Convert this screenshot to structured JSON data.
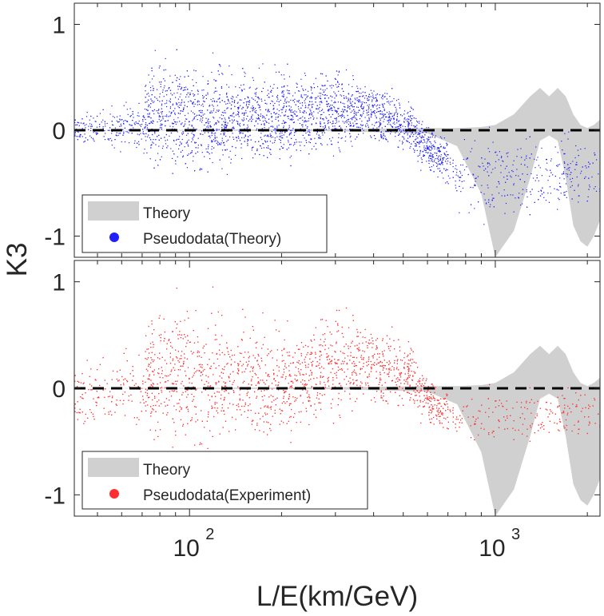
{
  "chart_data": {
    "type": "scatter",
    "shared_xlabel": "L/E(km/GeV)",
    "shared_ylabel": "K3",
    "x_scale": "log",
    "xlim": [
      42,
      2200
    ],
    "ylim": [
      -1.2,
      1.2
    ],
    "x_ticks": [
      {
        "value": 100,
        "base": "10",
        "exp": "2"
      },
      {
        "value": 1000,
        "base": "10",
        "exp": "3"
      }
    ],
    "y_ticks": [
      {
        "value": 1,
        "label": "1"
      },
      {
        "value": 0,
        "label": "0"
      },
      {
        "value": -1,
        "label": "-1"
      }
    ],
    "reference_line": {
      "y": 0,
      "style": "dashed",
      "color": "#000000"
    },
    "theory_band": {
      "color": "#d0d0d0",
      "description": "envelope",
      "x": [
        42,
        300,
        600,
        750,
        900,
        1000,
        1150,
        1300,
        1400,
        1500,
        1600,
        1700,
        1800,
        1900,
        2000,
        2100,
        2200
      ],
      "upper": [
        0,
        0.01,
        0.02,
        0.02,
        0.03,
        0.05,
        0.15,
        0.32,
        0.4,
        0.32,
        0.4,
        0.32,
        0.15,
        0.05,
        0.02,
        0.05,
        0.1
      ],
      "lower": [
        0,
        -0.01,
        -0.03,
        -0.15,
        -0.6,
        -1.2,
        -0.95,
        -0.45,
        -0.1,
        -0.05,
        -0.1,
        -0.45,
        -0.9,
        -1.05,
        -1.1,
        -1.0,
        -0.85
      ]
    },
    "panels": [
      {
        "name": "theory",
        "legend": [
          "Theory",
          "Pseudodata(Theory)"
        ],
        "series_color": "#2020ff",
        "band_color": "#d0d0d0",
        "envelope": {
          "x": [
            42,
            60,
            70,
            75,
            100,
            150,
            200,
            300,
            400,
            450,
            500,
            550,
            600,
            650,
            700,
            800,
            1000,
            1500,
            2200
          ],
          "upper": [
            0.2,
            0.3,
            0.45,
            0.9,
            0.8,
            0.7,
            0.7,
            0.65,
            0.55,
            0.45,
            0.35,
            0.25,
            0.15,
            0.1,
            0.05,
            0.05,
            0.05,
            0.05,
            0.05
          ],
          "lower": [
            -0.15,
            -0.25,
            -0.3,
            -0.5,
            -0.55,
            -0.45,
            -0.4,
            -0.3,
            -0.2,
            -0.2,
            -0.25,
            -0.35,
            -0.45,
            -0.55,
            -0.7,
            -0.9,
            -0.95,
            -0.95,
            -0.9
          ]
        }
      },
      {
        "name": "experiment",
        "legend": [
          "Theory",
          "Pseudodata(Experiment)"
        ],
        "series_color": "#ff3030",
        "band_color": "#d0d0d0",
        "envelope": {
          "x": [
            42,
            60,
            70,
            75,
            100,
            150,
            200,
            300,
            400,
            500,
            550,
            600,
            650,
            700,
            800,
            1000,
            1500,
            2200
          ],
          "upper": [
            0.35,
            0.45,
            0.6,
            1.0,
            1.05,
            0.9,
            0.7,
            0.85,
            0.75,
            0.55,
            0.4,
            0.25,
            0.15,
            0.1,
            0.05,
            0.05,
            0.1,
            0.1
          ],
          "lower": [
            -0.45,
            -0.5,
            -0.55,
            -0.65,
            -0.75,
            -0.7,
            -0.6,
            -0.4,
            -0.3,
            -0.25,
            -0.3,
            -0.4,
            -0.5,
            -0.55,
            -0.6,
            -0.6,
            -0.6,
            -0.6
          ]
        }
      }
    ]
  }
}
